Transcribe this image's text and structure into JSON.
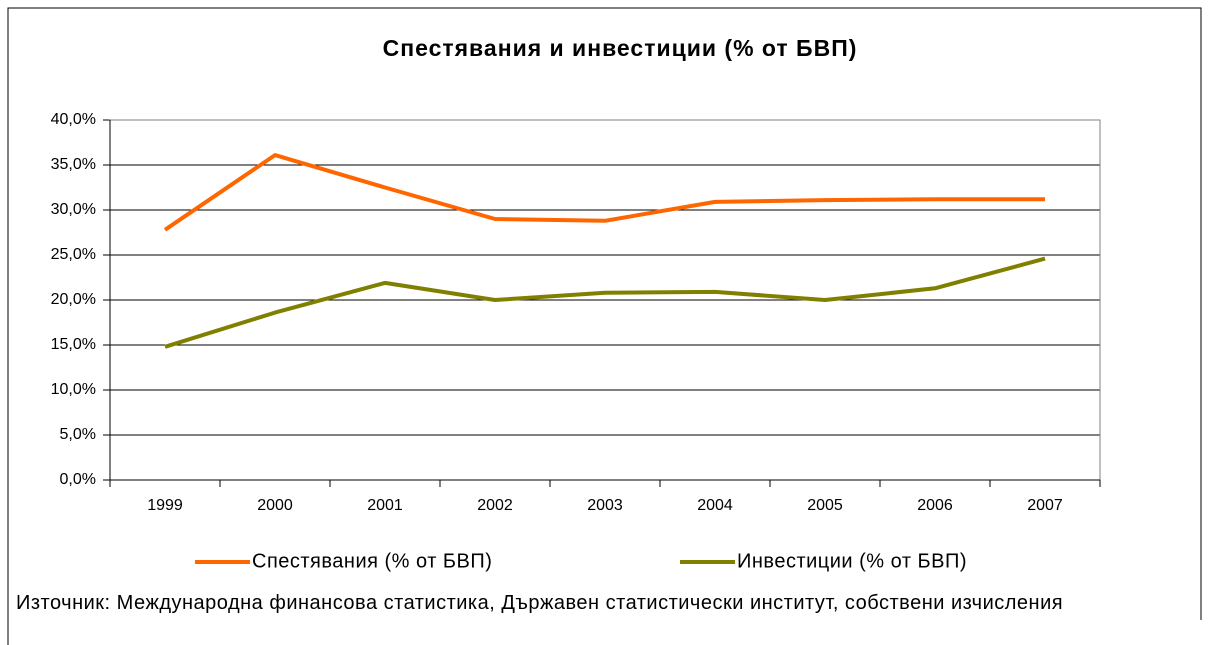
{
  "chart_data": {
    "type": "line",
    "title": "Спестявания и инвестиции (% от БВП)",
    "categories": [
      "1999",
      "2000",
      "2001",
      "2002",
      "2003",
      "2004",
      "2005",
      "2006",
      "2007"
    ],
    "series": [
      {
        "name": "Спестявания (% от БВП)",
        "color": "#ff6600",
        "values": [
          27.8,
          36.1,
          32.5,
          29.0,
          28.8,
          30.9,
          31.1,
          31.2,
          31.2
        ]
      },
      {
        "name": "Инвестиции (% от БВП)",
        "color": "#808000",
        "values": [
          14.8,
          18.6,
          21.9,
          20.0,
          20.8,
          20.9,
          20.0,
          21.3,
          24.6
        ]
      }
    ],
    "ylim": [
      0,
      40
    ],
    "yticks": [
      {
        "value": 0,
        "label": "0,0%"
      },
      {
        "value": 5,
        "label": "5,0%"
      },
      {
        "value": 10,
        "label": "10,0%"
      },
      {
        "value": 15,
        "label": "15,0%"
      },
      {
        "value": 20,
        "label": "20,0%"
      },
      {
        "value": 25,
        "label": "25,0%"
      },
      {
        "value": 30,
        "label": "30,0%"
      },
      {
        "value": 35,
        "label": "35,0%"
      },
      {
        "value": 40,
        "label": "40,0%"
      }
    ],
    "grid": true,
    "legend": "bottom",
    "source": "Източник: Международна финансова статистика, Държавен статистически институт, собствени изчисления"
  }
}
